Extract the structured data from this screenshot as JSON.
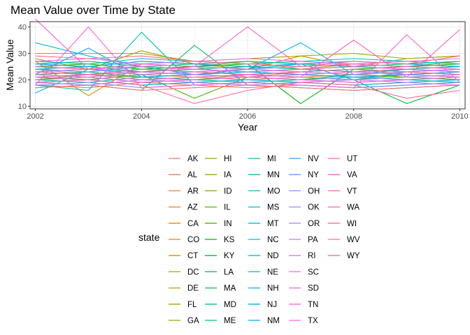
{
  "chart_data": {
    "type": "line",
    "title": "Mean Value over Time by State",
    "xlabel": "Year",
    "ylabel": "Mean Value",
    "xlim": [
      2001.9,
      2010.1
    ],
    "ylim": [
      9,
      42
    ],
    "x_ticks": [
      2002,
      2004,
      2006,
      2008,
      2010
    ],
    "x_tick_labels": [
      "2002",
      "2004",
      "2006",
      "2008",
      "2010"
    ],
    "y_ticks": [
      10,
      20,
      30,
      40
    ],
    "y_tick_labels": [
      "10",
      "20",
      "30",
      "40"
    ],
    "grid": true,
    "legend_title": "state",
    "legend_position": "bottom",
    "x": [
      2002,
      2003,
      2004,
      2005,
      2006,
      2007,
      2008,
      2009,
      2010
    ],
    "series": [
      {
        "name": "AK",
        "values": [
          24,
          22,
          23,
          25,
          21,
          23,
          24,
          22,
          23
        ]
      },
      {
        "name": "AL",
        "values": [
          18,
          17,
          19,
          18,
          17,
          18,
          17,
          18,
          19
        ]
      },
      {
        "name": "AR",
        "values": [
          21,
          20,
          22,
          21,
          20,
          21,
          22,
          21,
          20
        ]
      },
      {
        "name": "AZ",
        "values": [
          25,
          24,
          23,
          24,
          25,
          24,
          23,
          24,
          25
        ]
      },
      {
        "name": "CA",
        "values": [
          22,
          23,
          21,
          22,
          23,
          22,
          21,
          22,
          23
        ]
      },
      {
        "name": "CO",
        "values": [
          27,
          14,
          26,
          25,
          27,
          24,
          26,
          25,
          27
        ]
      },
      {
        "name": "CT",
        "values": [
          20,
          21,
          19,
          20,
          21,
          20,
          19,
          20,
          21
        ]
      },
      {
        "name": "DC",
        "values": [
          30,
          30,
          30,
          27,
          28,
          29,
          25,
          28,
          29
        ]
      },
      {
        "name": "DE",
        "values": [
          23,
          22,
          24,
          23,
          22,
          23,
          24,
          23,
          22
        ]
      },
      {
        "name": "FL",
        "values": [
          19,
          20,
          18,
          19,
          20,
          19,
          18,
          19,
          20
        ]
      },
      {
        "name": "GA",
        "values": [
          26,
          25,
          27,
          26,
          25,
          26,
          27,
          26,
          25
        ]
      },
      {
        "name": "HI",
        "values": [
          28,
          24,
          31,
          26,
          24,
          29,
          30,
          28,
          29
        ]
      },
      {
        "name": "IA",
        "values": [
          22,
          21,
          23,
          22,
          21,
          22,
          23,
          22,
          21
        ]
      },
      {
        "name": "ID",
        "values": [
          20,
          22,
          21,
          20,
          22,
          21,
          20,
          22,
          21
        ]
      },
      {
        "name": "IL",
        "values": [
          24,
          23,
          25,
          24,
          23,
          24,
          25,
          24,
          23
        ]
      },
      {
        "name": "IN",
        "values": [
          21,
          20,
          22,
          13,
          21,
          20,
          22,
          21,
          20
        ]
      },
      {
        "name": "KS",
        "values": [
          25,
          26,
          24,
          25,
          26,
          11,
          24,
          25,
          26
        ]
      },
      {
        "name": "KY",
        "values": [
          19,
          18,
          20,
          19,
          18,
          19,
          20,
          11,
          18
        ]
      },
      {
        "name": "LA",
        "values": [
          23,
          24,
          22,
          23,
          24,
          23,
          22,
          23,
          24
        ]
      },
      {
        "name": "MA",
        "values": [
          17,
          18,
          16,
          33,
          18,
          17,
          16,
          17,
          18
        ]
      },
      {
        "name": "MD",
        "values": [
          26,
          27,
          25,
          26,
          27,
          26,
          25,
          26,
          27
        ]
      },
      {
        "name": "ME",
        "values": [
          22,
          23,
          21,
          22,
          23,
          22,
          21,
          22,
          23
        ]
      },
      {
        "name": "MI",
        "values": [
          20,
          19,
          21,
          20,
          19,
          20,
          21,
          20,
          19
        ]
      },
      {
        "name": "MN",
        "values": [
          24,
          25,
          23,
          24,
          25,
          24,
          23,
          24,
          25
        ]
      },
      {
        "name": "MO",
        "values": [
          18,
          16,
          38,
          18,
          19,
          18,
          17,
          18,
          19
        ]
      },
      {
        "name": "MS",
        "values": [
          27,
          26,
          28,
          27,
          26,
          27,
          28,
          27,
          26
        ]
      },
      {
        "name": "MT",
        "values": [
          21,
          22,
          20,
          21,
          22,
          21,
          20,
          21,
          22
        ]
      },
      {
        "name": "NC",
        "values": [
          23,
          22,
          24,
          23,
          22,
          23,
          24,
          23,
          22
        ]
      },
      {
        "name": "ND",
        "values": [
          34,
          29,
          25,
          22,
          24,
          26,
          20,
          23,
          24
        ]
      },
      {
        "name": "NE",
        "values": [
          19,
          20,
          18,
          19,
          20,
          19,
          18,
          19,
          20
        ]
      },
      {
        "name": "NH",
        "values": [
          15,
          24,
          23,
          22,
          24,
          34,
          22,
          24,
          23
        ]
      },
      {
        "name": "NJ",
        "values": [
          26,
          25,
          27,
          26,
          25,
          26,
          27,
          26,
          25
        ]
      },
      {
        "name": "NM",
        "values": [
          22,
          32,
          21,
          22,
          23,
          22,
          21,
          22,
          23
        ]
      },
      {
        "name": "NV",
        "values": [
          20,
          21,
          19,
          20,
          21,
          20,
          19,
          20,
          21
        ]
      },
      {
        "name": "NY",
        "values": [
          24,
          23,
          25,
          24,
          23,
          24,
          25,
          24,
          23
        ]
      },
      {
        "name": "OH",
        "values": [
          18,
          19,
          17,
          18,
          19,
          18,
          17,
          18,
          19
        ]
      },
      {
        "name": "OK",
        "values": [
          25,
          24,
          26,
          25,
          24,
          25,
          26,
          25,
          24
        ]
      },
      {
        "name": "OR",
        "values": [
          21,
          22,
          20,
          21,
          22,
          21,
          20,
          21,
          22
        ]
      },
      {
        "name": "PA",
        "values": [
          23,
          24,
          22,
          23,
          24,
          23,
          22,
          23,
          24
        ]
      },
      {
        "name": "RI",
        "values": [
          19,
          18,
          20,
          19,
          18,
          19,
          20,
          19,
          18
        ]
      },
      {
        "name": "SC",
        "values": [
          27,
          28,
          26,
          27,
          28,
          27,
          26,
          27,
          28
        ]
      },
      {
        "name": "SD",
        "values": [
          22,
          21,
          23,
          22,
          21,
          22,
          23,
          22,
          21
        ]
      },
      {
        "name": "TN",
        "values": [
          20,
          21,
          19,
          20,
          21,
          20,
          19,
          20,
          21
        ]
      },
      {
        "name": "TX",
        "values": [
          43,
          24,
          25,
          24,
          23,
          24,
          25,
          24,
          23
        ]
      },
      {
        "name": "UT",
        "values": [
          18,
          40,
          17,
          18,
          19,
          18,
          17,
          37,
          19
        ]
      },
      {
        "name": "VA",
        "values": [
          25,
          24,
          26,
          25,
          40,
          25,
          26,
          25,
          24
        ]
      },
      {
        "name": "VT",
        "values": [
          21,
          22,
          20,
          21,
          22,
          21,
          35,
          21,
          39
        ]
      },
      {
        "name": "WA",
        "values": [
          23,
          22,
          24,
          23,
          22,
          23,
          24,
          23,
          22
        ]
      },
      {
        "name": "WI",
        "values": [
          19,
          20,
          18,
          11,
          16,
          19,
          18,
          13,
          16
        ]
      },
      {
        "name": "WV",
        "values": [
          29,
          28,
          29,
          27,
          26,
          25,
          27,
          26,
          29
        ]
      },
      {
        "name": "WY",
        "values": [
          17,
          18,
          16,
          17,
          18,
          17,
          16,
          17,
          18
        ]
      }
    ]
  }
}
